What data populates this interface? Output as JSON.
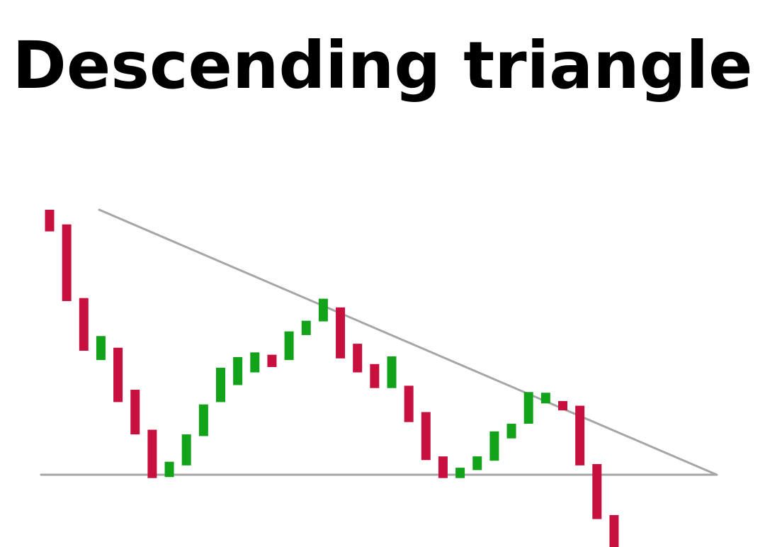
{
  "title": "Descending triangle",
  "chart_data": {
    "type": "candlestick",
    "title": "Descending triangle",
    "ylim": [
      0,
      100
    ],
    "colors": {
      "up": "#12a31a",
      "down": "#c8103e",
      "line": "#a6a6a6"
    },
    "candles": [
      {
        "direction": "down",
        "top": 100,
        "bottom": 93.5
      },
      {
        "direction": "down",
        "top": 95.6,
        "bottom": 72.6
      },
      {
        "direction": "down",
        "top": 73.5,
        "bottom": 57.7
      },
      {
        "direction": "up",
        "top": 62.1,
        "bottom": 54.9
      },
      {
        "direction": "down",
        "top": 58.6,
        "bottom": 42.3
      },
      {
        "direction": "down",
        "top": 46.0,
        "bottom": 32.6
      },
      {
        "direction": "down",
        "top": 34.0,
        "bottom": 19.5
      },
      {
        "direction": "up",
        "top": 24.4,
        "bottom": 19.8
      },
      {
        "direction": "up",
        "top": 32.6,
        "bottom": 23.3
      },
      {
        "direction": "up",
        "top": 41.6,
        "bottom": 32.1
      },
      {
        "direction": "up",
        "top": 52.6,
        "bottom": 42.3
      },
      {
        "direction": "up",
        "top": 55.8,
        "bottom": 47.4
      },
      {
        "direction": "up",
        "top": 57.2,
        "bottom": 51.2
      },
      {
        "direction": "down",
        "top": 56.5,
        "bottom": 52.8
      },
      {
        "direction": "up",
        "top": 63.5,
        "bottom": 54.9
      },
      {
        "direction": "up",
        "top": 66.7,
        "bottom": 62.4
      },
      {
        "direction": "up",
        "top": 73.3,
        "bottom": 66.5
      },
      {
        "direction": "down",
        "top": 70.7,
        "bottom": 55.4
      },
      {
        "direction": "down",
        "top": 59.8,
        "bottom": 51.2
      },
      {
        "direction": "down",
        "top": 53.7,
        "bottom": 46.5
      },
      {
        "direction": "up",
        "top": 56.0,
        "bottom": 46.5
      },
      {
        "direction": "down",
        "top": 47.2,
        "bottom": 36.3
      },
      {
        "direction": "down",
        "top": 39.3,
        "bottom": 24.9
      },
      {
        "direction": "down",
        "top": 26.0,
        "bottom": 19.5
      },
      {
        "direction": "up",
        "top": 22.6,
        "bottom": 19.5
      },
      {
        "direction": "up",
        "top": 26.0,
        "bottom": 21.9
      },
      {
        "direction": "up",
        "top": 33.5,
        "bottom": 24.7
      },
      {
        "direction": "up",
        "top": 35.8,
        "bottom": 31.4
      },
      {
        "direction": "up",
        "top": 45.3,
        "bottom": 35.8
      },
      {
        "direction": "up",
        "top": 45.1,
        "bottom": 41.9
      },
      {
        "direction": "down",
        "top": 42.6,
        "bottom": 39.8
      },
      {
        "direction": "down",
        "top": 41.2,
        "bottom": 23.3
      },
      {
        "direction": "down",
        "top": 23.7,
        "bottom": 7.2
      },
      {
        "direction": "down",
        "top": 8.4,
        "bottom": -5
      }
    ],
    "trendlines": [
      {
        "name": "resistance",
        "x": [
          2.9,
          39.0
        ],
        "y": [
          100,
          20.5
        ]
      },
      {
        "name": "support",
        "x": [
          -0.5,
          39.0
        ],
        "y": [
          20.5,
          20.5
        ]
      }
    ]
  }
}
